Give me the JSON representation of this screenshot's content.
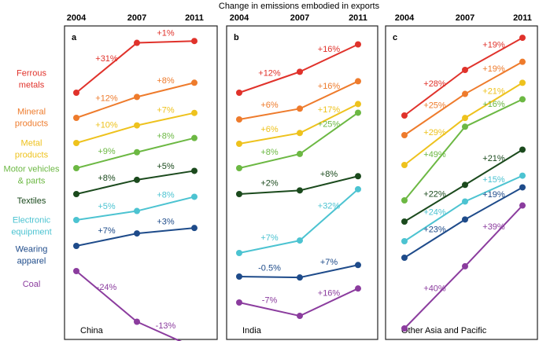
{
  "chart_data": {
    "type": "slope",
    "title": "Change in emissions embodied in exports",
    "x": [
      "2004",
      "2007",
      "2011"
    ],
    "series": [
      {
        "name": "Ferrous\nmetals",
        "color": "#e0322b"
      },
      {
        "name": "Mineral\nproducts",
        "color": "#ee7b2c"
      },
      {
        "name": "Metal\nproducts",
        "color": "#eec21d"
      },
      {
        "name": "Motor vehicles\n& parts",
        "color": "#6cb843"
      },
      {
        "name": "Textiles",
        "color": "#1b4a1d"
      },
      {
        "name": "Electronic\nequipment",
        "color": "#4cc3d1"
      },
      {
        "name": "Wearing\napparel",
        "color": "#1e4b8a"
      },
      {
        "name": "Coal",
        "color": "#8b3c9e"
      }
    ],
    "panels": [
      {
        "label": "a",
        "name": "China",
        "values": [
          [
            31,
            1
          ],
          [
            12,
            8
          ],
          [
            10,
            7
          ],
          [
            9,
            8
          ],
          [
            8,
            5
          ],
          [
            5,
            8
          ],
          [
            7,
            3
          ],
          [
            -24,
            -13
          ]
        ],
        "value_labels": [
          [
            "+31%",
            "+1%"
          ],
          [
            "+12%",
            "+8%"
          ],
          [
            "+10%",
            "+7%"
          ],
          [
            "+9%",
            "+8%"
          ],
          [
            "+8%",
            "+5%"
          ],
          [
            "+5%",
            "+8%"
          ],
          [
            "+7%",
            "+3%"
          ],
          [
            "-24%",
            "-13%"
          ]
        ]
      },
      {
        "label": "b",
        "name": "India",
        "values": [
          [
            12,
            16
          ],
          [
            6,
            16
          ],
          [
            6,
            17
          ],
          [
            8,
            25
          ],
          [
            2,
            8
          ],
          [
            7,
            32
          ],
          [
            -0.5,
            7
          ],
          [
            -7,
            16
          ]
        ],
        "value_labels": [
          [
            "+12%",
            "+16%"
          ],
          [
            "+6%",
            "+16%"
          ],
          [
            "+6%",
            "+17%"
          ],
          [
            "+8%",
            "+25%"
          ],
          [
            "+2%",
            "+8%"
          ],
          [
            "+7%",
            "+32%"
          ],
          [
            "-0.5%",
            "+7%"
          ],
          [
            "-7%",
            "+16%"
          ]
        ]
      },
      {
        "label": "c",
        "name": "Other Asia and Pacific",
        "values": [
          [
            28,
            19
          ],
          [
            25,
            19
          ],
          [
            29,
            21
          ],
          [
            49,
            16
          ],
          [
            22,
            21
          ],
          [
            24,
            15
          ],
          [
            23,
            19
          ],
          [
            40,
            39
          ]
        ],
        "value_labels": [
          [
            "+28%",
            "+19%"
          ],
          [
            "+25%",
            "+19%"
          ],
          [
            "+29%",
            "+21%"
          ],
          [
            "+49%",
            "+16%"
          ],
          [
            "+22%",
            "+21%"
          ],
          [
            "+24%",
            "+15%"
          ],
          [
            "+23%",
            "+19%"
          ],
          [
            "+40%",
            "+39%"
          ]
        ]
      }
    ]
  }
}
